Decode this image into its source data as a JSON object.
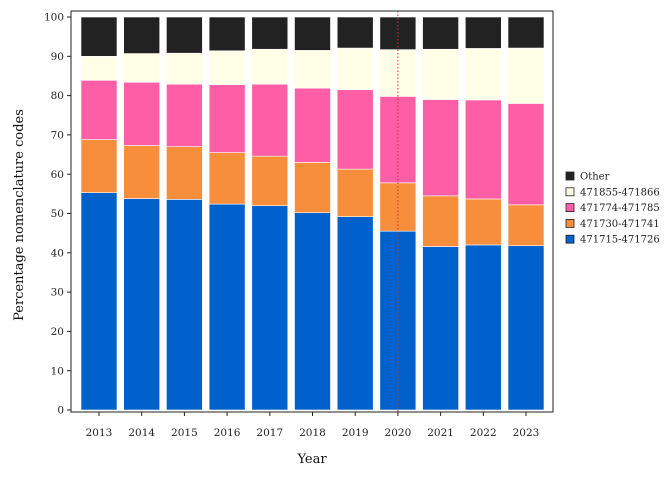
{
  "chart_data": {
    "type": "bar",
    "stacked": true,
    "categories": [
      "2013",
      "2014",
      "2015",
      "2016",
      "2017",
      "2018",
      "2019",
      "2020",
      "2021",
      "2022",
      "2023"
    ],
    "series": [
      {
        "name": "471715-471726",
        "color": "#0060cc",
        "values": [
          55.3,
          53.8,
          53.6,
          52.4,
          52.0,
          50.2,
          49.2,
          45.5,
          41.6,
          42.0,
          41.8
        ]
      },
      {
        "name": "471730-471741",
        "color": "#f78e3c",
        "values": [
          13.5,
          13.5,
          13.4,
          13.1,
          12.6,
          12.8,
          12.1,
          12.3,
          12.9,
          11.7,
          10.4
        ]
      },
      {
        "name": "471774-471785",
        "color": "#fd5ea6",
        "values": [
          15.1,
          16.1,
          15.9,
          17.3,
          18.3,
          18.9,
          20.2,
          22.0,
          24.5,
          25.2,
          25.8
        ]
      },
      {
        "name": "471855-471866",
        "color": "#ffffe8",
        "values": [
          6.1,
          7.3,
          7.9,
          8.6,
          8.9,
          9.6,
          10.6,
          11.9,
          12.8,
          13.1,
          14.1
        ]
      },
      {
        "name": "Other",
        "color": "#222222",
        "values": [
          10.0,
          9.3,
          9.2,
          8.6,
          8.2,
          8.5,
          7.9,
          8.3,
          8.2,
          8.0,
          7.9
        ]
      }
    ],
    "legend_order": [
      "Other",
      "471855-471866",
      "471774-471785",
      "471730-471741",
      "471715-471726"
    ],
    "xlabel": "Year",
    "ylabel": "Percentage nomenclature codes",
    "ylim": [
      0,
      100
    ],
    "yticks": [
      0,
      10,
      20,
      30,
      40,
      50,
      60,
      70,
      80,
      90,
      100
    ],
    "vline_at": "2020",
    "vline_color": "#cc3333",
    "legend_position": "right",
    "grid": false
  }
}
